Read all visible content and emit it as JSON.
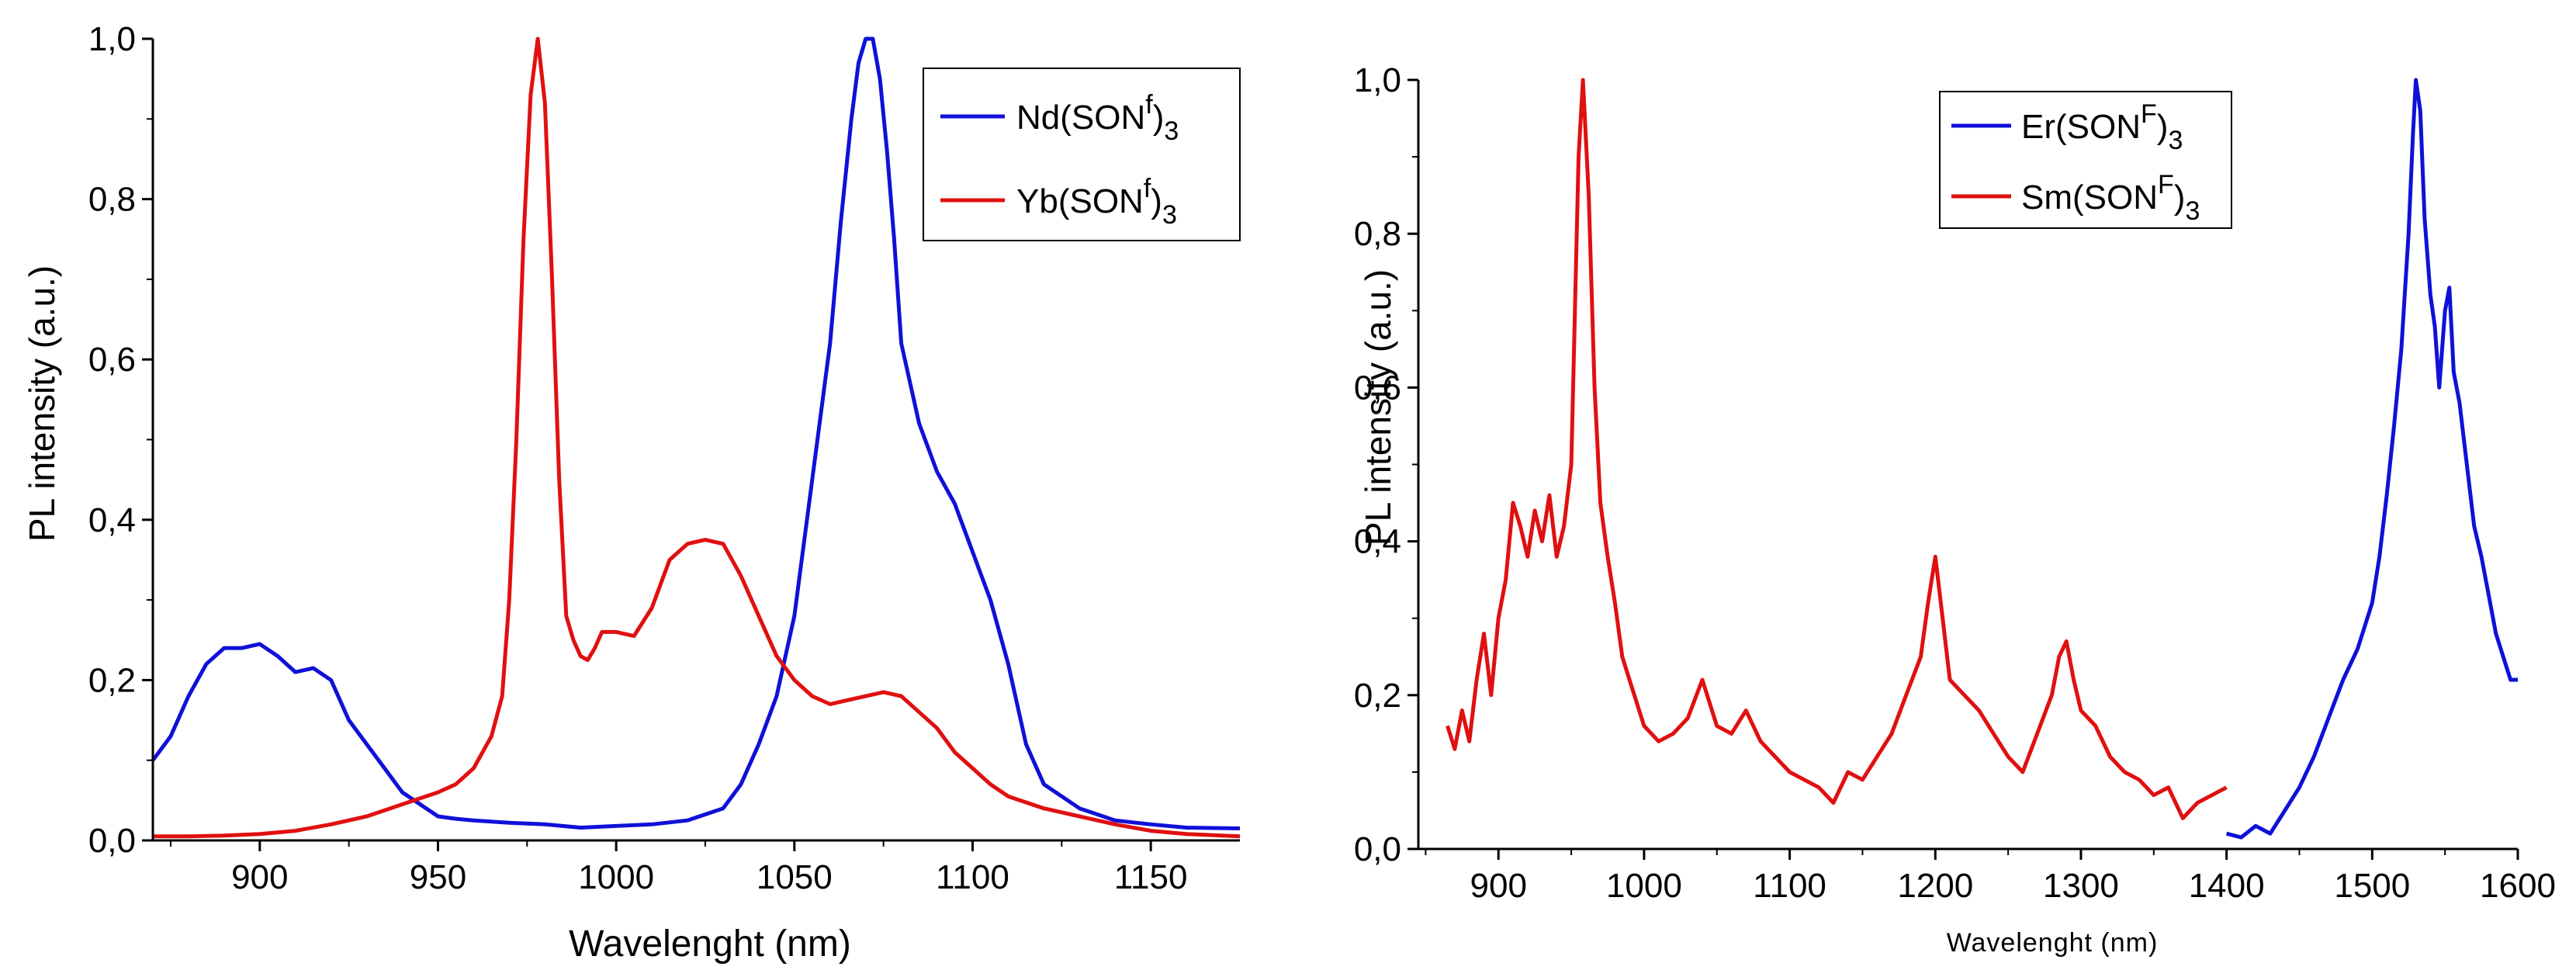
{
  "chart_data": [
    {
      "type": "line",
      "xlabel": "Wavelenght (nm)",
      "ylabel": "PL intensity (a.u.)",
      "xlim": [
        870,
        1175
      ],
      "ylim": [
        0,
        1.0
      ],
      "xticks": [
        "900",
        "950",
        "1000",
        "1050",
        "1100",
        "1150"
      ],
      "xtick_values": [
        900,
        950,
        1000,
        1050,
        1100,
        1150
      ],
      "yticks": [
        "0,0",
        "0,2",
        "0,4",
        "0,6",
        "0,8",
        "1,0"
      ],
      "ytick_values": [
        0,
        0.2,
        0.4,
        0.6,
        0.8,
        1.0
      ],
      "legend_position": "top-right",
      "series": [
        {
          "name": "Nd(SONf)3",
          "label_main": "Nd(SON",
          "label_sup": "f",
          "label_close": ")",
          "label_sub": "3",
          "color": "#1010d8",
          "x": [
            870,
            875,
            880,
            885,
            890,
            895,
            900,
            905,
            910,
            915,
            920,
            925,
            930,
            935,
            940,
            945,
            950,
            955,
            960,
            970,
            980,
            990,
            1000,
            1010,
            1020,
            1030,
            1035,
            1040,
            1045,
            1050,
            1055,
            1060,
            1063,
            1066,
            1068,
            1070,
            1072,
            1074,
            1076,
            1078,
            1080,
            1085,
            1090,
            1095,
            1100,
            1105,
            1110,
            1115,
            1120,
            1130,
            1140,
            1150,
            1160,
            1175
          ],
          "y": [
            0.1,
            0.13,
            0.18,
            0.22,
            0.24,
            0.24,
            0.245,
            0.23,
            0.21,
            0.215,
            0.2,
            0.15,
            0.12,
            0.09,
            0.06,
            0.045,
            0.03,
            0.027,
            0.025,
            0.022,
            0.02,
            0.016,
            0.018,
            0.02,
            0.025,
            0.04,
            0.07,
            0.12,
            0.18,
            0.28,
            0.45,
            0.62,
            0.77,
            0.9,
            0.97,
            1.0,
            1.0,
            0.95,
            0.86,
            0.75,
            0.62,
            0.52,
            0.46,
            0.42,
            0.36,
            0.3,
            0.22,
            0.12,
            0.07,
            0.04,
            0.025,
            0.02,
            0.016,
            0.015
          ]
        },
        {
          "name": "Yb(SONf)3",
          "label_main": "Yb(SON",
          "label_sup": "f",
          "label_close": ")",
          "label_sub": "3",
          "color": "#e01010",
          "x": [
            870,
            880,
            890,
            900,
            910,
            920,
            930,
            940,
            950,
            955,
            960,
            965,
            968,
            970,
            972,
            974,
            976,
            978,
            980,
            982,
            984,
            986,
            988,
            990,
            992,
            994,
            996,
            1000,
            1005,
            1010,
            1015,
            1020,
            1025,
            1030,
            1035,
            1040,
            1045,
            1050,
            1055,
            1060,
            1065,
            1070,
            1075,
            1080,
            1085,
            1090,
            1095,
            1100,
            1105,
            1110,
            1120,
            1130,
            1140,
            1150,
            1160,
            1175
          ],
          "y": [
            0.005,
            0.005,
            0.006,
            0.008,
            0.012,
            0.02,
            0.03,
            0.045,
            0.06,
            0.07,
            0.09,
            0.13,
            0.18,
            0.3,
            0.5,
            0.75,
            0.93,
            1.0,
            0.92,
            0.7,
            0.45,
            0.28,
            0.25,
            0.23,
            0.225,
            0.24,
            0.26,
            0.26,
            0.255,
            0.29,
            0.35,
            0.37,
            0.375,
            0.37,
            0.33,
            0.28,
            0.23,
            0.2,
            0.18,
            0.17,
            0.175,
            0.18,
            0.185,
            0.18,
            0.16,
            0.14,
            0.11,
            0.09,
            0.07,
            0.055,
            0.04,
            0.03,
            0.02,
            0.012,
            0.008,
            0.005
          ]
        }
      ]
    },
    {
      "type": "line",
      "xlabel": "Wavelenght (nm)",
      "ylabel": "PL intensity (a.u.)",
      "xlim": [
        845,
        1600
      ],
      "ylim": [
        0,
        1.0
      ],
      "xticks": [
        "900",
        "1000",
        "1100",
        "1200",
        "1300",
        "1400",
        "1500",
        "1600"
      ],
      "xtick_values": [
        900,
        1000,
        1100,
        1200,
        1300,
        1400,
        1500,
        1600
      ],
      "yticks": [
        "0,0",
        "0,2",
        "0,4",
        "0,6",
        "0,8",
        "1,0"
      ],
      "ytick_values": [
        0,
        0.2,
        0.4,
        0.6,
        0.8,
        1.0
      ],
      "legend_position": "top-center",
      "series": [
        {
          "name": "Er(SONF)3",
          "label_main": "Er(SON",
          "label_sup": "F",
          "label_close": ")",
          "label_sub": "3",
          "color": "#1010d8",
          "x": [
            1400,
            1410,
            1420,
            1430,
            1440,
            1450,
            1460,
            1470,
            1480,
            1490,
            1500,
            1505,
            1510,
            1515,
            1520,
            1525,
            1528,
            1530,
            1533,
            1536,
            1540,
            1543,
            1546,
            1550,
            1553,
            1556,
            1560,
            1565,
            1570,
            1575,
            1580,
            1585,
            1590,
            1595,
            1600
          ],
          "y": [
            0.02,
            0.015,
            0.03,
            0.02,
            0.05,
            0.08,
            0.12,
            0.17,
            0.22,
            0.26,
            0.32,
            0.38,
            0.46,
            0.55,
            0.65,
            0.8,
            0.93,
            1.0,
            0.96,
            0.82,
            0.72,
            0.68,
            0.6,
            0.7,
            0.73,
            0.62,
            0.58,
            0.5,
            0.42,
            0.38,
            0.33,
            0.28,
            0.25,
            0.22,
            0.22
          ]
        },
        {
          "name": "Sm(SONF)3",
          "label_main": "Sm(SON",
          "label_sup": "F",
          "label_close": ")",
          "label_sub": "3",
          "color": "#e01010",
          "x": [
            865,
            870,
            875,
            880,
            885,
            890,
            895,
            900,
            905,
            910,
            915,
            920,
            925,
            930,
            935,
            940,
            945,
            950,
            955,
            958,
            962,
            966,
            970,
            975,
            980,
            985,
            990,
            1000,
            1010,
            1020,
            1030,
            1040,
            1050,
            1060,
            1070,
            1080,
            1090,
            1100,
            1110,
            1120,
            1130,
            1140,
            1150,
            1160,
            1170,
            1180,
            1190,
            1195,
            1200,
            1205,
            1210,
            1220,
            1230,
            1240,
            1250,
            1260,
            1270,
            1280,
            1285,
            1290,
            1295,
            1300,
            1310,
            1320,
            1330,
            1340,
            1350,
            1360,
            1370,
            1380,
            1390,
            1400
          ],
          "y": [
            0.16,
            0.13,
            0.18,
            0.14,
            0.22,
            0.28,
            0.2,
            0.3,
            0.35,
            0.45,
            0.42,
            0.38,
            0.44,
            0.4,
            0.46,
            0.38,
            0.42,
            0.5,
            0.9,
            1.0,
            0.85,
            0.6,
            0.45,
            0.38,
            0.32,
            0.25,
            0.22,
            0.16,
            0.14,
            0.15,
            0.17,
            0.22,
            0.16,
            0.15,
            0.18,
            0.14,
            0.12,
            0.1,
            0.09,
            0.08,
            0.06,
            0.1,
            0.09,
            0.12,
            0.15,
            0.2,
            0.25,
            0.32,
            0.38,
            0.3,
            0.22,
            0.2,
            0.18,
            0.15,
            0.12,
            0.1,
            0.15,
            0.2,
            0.25,
            0.27,
            0.22,
            0.18,
            0.16,
            0.12,
            0.1,
            0.09,
            0.07,
            0.08,
            0.04,
            0.06,
            0.07,
            0.08
          ]
        }
      ]
    }
  ]
}
